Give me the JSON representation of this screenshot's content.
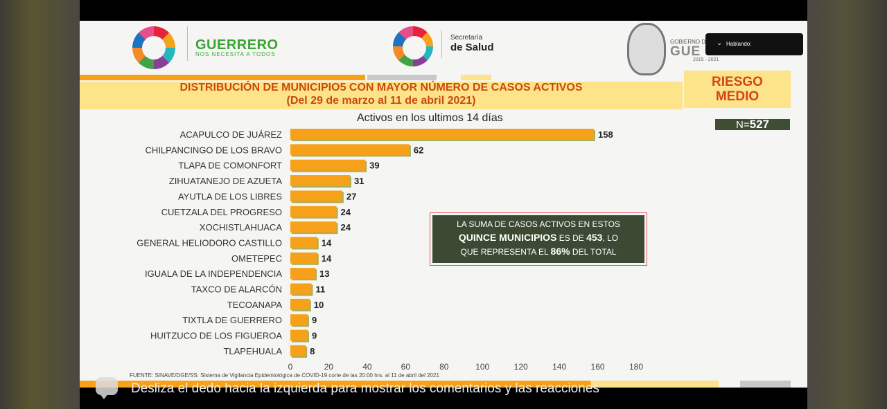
{
  "header": {
    "guerrero_title": "GUERRERO",
    "guerrero_sub": "NOS NECESITA A TODOS",
    "secretaria_line1": "Secretaría",
    "secretaria_line2": "de Salud",
    "gobierno_line1": "GOBIERNO D",
    "gobierno_line2": "GUE",
    "gobierno_years": "2015 - 2021"
  },
  "banner": {
    "title_line1": "DISTRIBUCIÓN DE MUNICIPIO5 CON MAYOR NÚMERO DE  CASOS ACTIVOS",
    "title_line2": "(Del 29 de marzo al 11 de abril 2021)",
    "riesgo_line1": "RIESGO",
    "riesgo_line2": "MEDIO"
  },
  "n_label": "N=",
  "n_value": "527",
  "info_box": {
    "line1": "LA SUMA DE CASOS ACTIVOS EN ESTOS",
    "line2_a": "QUINCE MUNICIPIOS",
    "line2_b": " ES DE ",
    "line2_c": "453",
    "line2_d": ", LO",
    "line3_a": "QUE REPRESENTA EL ",
    "line3_b": "86%",
    "line3_c": " DEL TOTAL"
  },
  "fuente": "FUENTE: SINAVE/DGE/SS: Sistema de Vigilancia Epidemiológica de COVID-19 corte de las 20:00 hrs. al 11 de abril del 2021",
  "overlay": {
    "label": "Hablando:"
  },
  "caption": "Desliza el dedo hacia la izquierda para mostrar los comentarios y las reacciones",
  "colors": {
    "bar": "#f7a01a",
    "bar_shadow": "#a7b05a",
    "banner": "#fde38a",
    "title": "#c94812",
    "box": "#3d4a33"
  },
  "chart_data": {
    "type": "bar",
    "orientation": "horizontal",
    "title": "Activos en los ultimos 14 días",
    "categories": [
      "ACAPULCO DE JUÁREZ",
      "CHILPANCINGO DE LOS BRAVO",
      "TLAPA DE COMONFORT",
      "ZIHUATANEJO DE AZUETA",
      "AYUTLA DE LOS LIBRES",
      "CUETZALA DEL PROGRESO",
      "XOCHISTLAHUACA",
      "GENERAL HELIODORO CASTILLO",
      "OMETEPEC",
      "IGUALA DE LA INDEPENDENCIA",
      "TAXCO DE ALARCÓN",
      "TECOANAPA",
      "TIXTLA DE GUERRERO",
      "HUITZUCO DE LOS FIGUEROA",
      "TLAPEHUALA"
    ],
    "values": [
      158,
      62,
      39,
      31,
      27,
      24,
      24,
      14,
      14,
      13,
      11,
      10,
      9,
      9,
      8
    ],
    "xlim": [
      0,
      180
    ],
    "xticks": [
      0,
      20,
      40,
      60,
      80,
      100,
      120,
      140,
      160,
      180
    ],
    "grid": false
  }
}
